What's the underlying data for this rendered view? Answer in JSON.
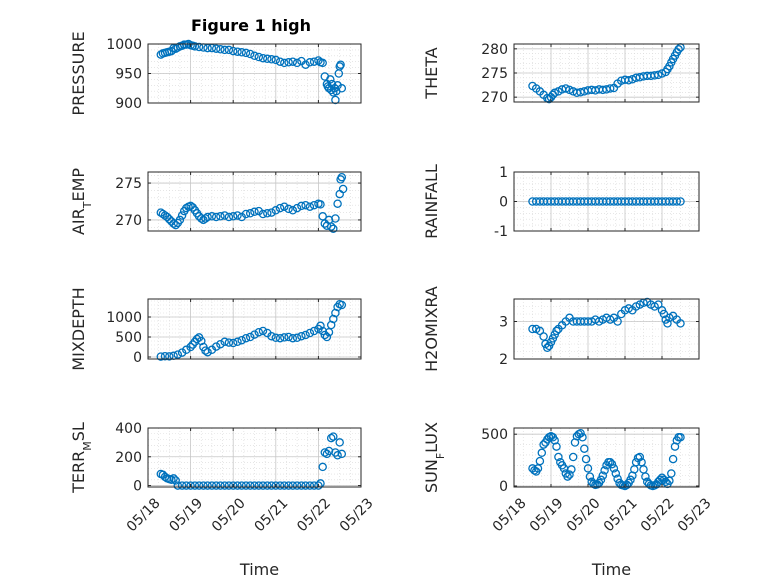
{
  "figure": {
    "title": "Figure 1 high",
    "marker_color": "#0072BD",
    "time_ticks": [
      "05/18",
      "05/19",
      "05/20",
      "05/21",
      "05/22",
      "05/23"
    ]
  },
  "chart_data": [
    {
      "type": "scatter",
      "ylabel": "PRESSURE",
      "ylabel_main": "PRESSURE",
      "ylabel_sub": "",
      "ylabel_rest": "",
      "xlabel": "",
      "xlim": [
        0,
        5
      ],
      "ylim": [
        900,
        1000
      ],
      "yticks": [
        900,
        950,
        1000
      ],
      "xticklabels_shown": false,
      "grid": true,
      "minor_grid": true,
      "x": [
        0.3,
        0.35,
        0.4,
        0.45,
        0.5,
        0.55,
        0.6,
        0.65,
        0.7,
        0.75,
        0.8,
        0.85,
        0.9,
        0.95,
        1.0,
        1.05,
        1.1,
        1.2,
        1.3,
        1.4,
        1.5,
        1.6,
        1.7,
        1.8,
        1.9,
        2.0,
        2.1,
        2.2,
        2.3,
        2.4,
        2.5,
        2.6,
        2.7,
        2.8,
        2.9,
        3.0,
        3.1,
        3.2,
        3.3,
        3.4,
        3.5,
        3.6,
        3.7,
        3.8,
        3.9,
        4.0,
        4.05,
        4.1,
        4.15,
        4.2,
        4.22,
        4.25,
        4.28,
        4.3,
        4.32,
        4.35,
        4.38,
        4.4,
        4.42,
        4.45,
        4.48,
        4.5,
        4.52,
        4.55
      ],
      "y": [
        982,
        984,
        985,
        986,
        987,
        988,
        993,
        992,
        994,
        996,
        997,
        999,
        999,
        1000,
        998,
        997,
        996,
        995,
        994,
        993,
        993,
        992,
        991,
        990,
        990,
        988,
        987,
        986,
        985,
        983,
        980,
        978,
        976,
        975,
        974,
        973,
        970,
        968,
        969,
        970,
        968,
        971,
        965,
        969,
        970,
        972,
        969,
        968,
        945,
        932,
        928,
        925,
        940,
        922,
        932,
        918,
        925,
        905,
        920,
        930,
        950,
        962,
        965,
        925
      ]
    },
    {
      "type": "scatter",
      "ylabel": "THETA",
      "ylabel_main": "THETA",
      "ylabel_sub": "",
      "ylabel_rest": "",
      "xlabel": "",
      "xlim": [
        0,
        5
      ],
      "ylim": [
        269,
        281
      ],
      "yticks": [
        270,
        275,
        280
      ],
      "xticklabels_shown": false,
      "grid": true,
      "minor_grid": true,
      "x": [
        0.5,
        0.6,
        0.7,
        0.8,
        0.9,
        0.95,
        1.0,
        1.05,
        1.1,
        1.2,
        1.3,
        1.4,
        1.5,
        1.6,
        1.7,
        1.8,
        1.9,
        2.0,
        2.1,
        2.2,
        2.3,
        2.4,
        2.5,
        2.6,
        2.7,
        2.8,
        2.9,
        3.0,
        3.1,
        3.2,
        3.3,
        3.4,
        3.5,
        3.6,
        3.7,
        3.8,
        3.9,
        4.0,
        4.1,
        4.15,
        4.2,
        4.25,
        4.3,
        4.35,
        4.4,
        4.45,
        4.5
      ],
      "y": [
        272.3,
        271.8,
        271.2,
        270.5,
        269.8,
        269.6,
        270.0,
        270.5,
        270.9,
        271.2,
        271.6,
        271.8,
        271.5,
        271.2,
        270.9,
        271.0,
        271.2,
        271.4,
        271.5,
        271.4,
        271.6,
        271.5,
        271.6,
        271.8,
        271.9,
        272.8,
        273.4,
        273.6,
        273.5,
        273.7,
        274.0,
        274.1,
        274.3,
        274.4,
        274.4,
        274.5,
        274.6,
        274.9,
        275.2,
        275.8,
        276.4,
        277.2,
        277.9,
        278.6,
        279.3,
        279.9,
        280.3
      ]
    },
    {
      "type": "scatter",
      "ylabel": "AIR_TEMP",
      "ylabel_main": "AIR",
      "ylabel_sub": "T",
      "ylabel_rest": "EMP",
      "xlabel": "",
      "xlim": [
        0,
        5
      ],
      "ylim": [
        268.5,
        276.5
      ],
      "yticks": [
        270,
        275
      ],
      "xticklabels_shown": false,
      "grid": true,
      "minor_grid": true,
      "x": [
        0.3,
        0.35,
        0.4,
        0.45,
        0.5,
        0.55,
        0.6,
        0.65,
        0.7,
        0.75,
        0.8,
        0.85,
        0.9,
        0.95,
        1.0,
        1.05,
        1.1,
        1.15,
        1.2,
        1.25,
        1.3,
        1.35,
        1.4,
        1.5,
        1.6,
        1.7,
        1.8,
        1.9,
        2.0,
        2.1,
        2.2,
        2.3,
        2.4,
        2.5,
        2.6,
        2.7,
        2.8,
        2.9,
        3.0,
        3.1,
        3.2,
        3.3,
        3.4,
        3.5,
        3.6,
        3.7,
        3.8,
        3.9,
        4.0,
        4.05,
        4.1,
        4.15,
        4.2,
        4.25,
        4.3,
        4.35,
        4.4,
        4.45,
        4.5,
        4.52,
        4.55,
        4.58
      ],
      "y": [
        271.0,
        270.8,
        270.6,
        270.4,
        270.1,
        269.8,
        269.5,
        269.3,
        269.6,
        270.0,
        270.6,
        271.2,
        271.6,
        271.8,
        271.9,
        271.7,
        271.3,
        270.9,
        270.5,
        270.2,
        270.0,
        270.2,
        270.4,
        270.5,
        270.4,
        270.5,
        270.6,
        270.4,
        270.5,
        270.6,
        270.4,
        270.8,
        270.9,
        271.1,
        271.2,
        270.8,
        270.9,
        271.0,
        271.3,
        271.6,
        271.8,
        271.5,
        271.3,
        271.6,
        271.9,
        272.0,
        271.8,
        272.0,
        272.2,
        272.1,
        270.5,
        269.5,
        269.2,
        270.0,
        269.1,
        268.8,
        270.2,
        272.2,
        273.5,
        275.5,
        275.8,
        274.2
      ]
    },
    {
      "type": "scatter",
      "ylabel": "RAINFALL",
      "ylabel_main": "RAINFALL",
      "ylabel_sub": "",
      "ylabel_rest": "",
      "xlabel": "",
      "xlim": [
        0,
        5
      ],
      "ylim": [
        -1,
        1
      ],
      "yticks": [
        -1,
        0,
        1
      ],
      "xticklabels_shown": false,
      "grid": true,
      "minor_grid": true,
      "x": [
        0.5,
        0.6,
        0.7,
        0.8,
        0.9,
        1.0,
        1.1,
        1.2,
        1.3,
        1.4,
        1.5,
        1.6,
        1.7,
        1.8,
        1.9,
        2.0,
        2.1,
        2.2,
        2.3,
        2.4,
        2.5,
        2.6,
        2.7,
        2.8,
        2.9,
        3.0,
        3.1,
        3.2,
        3.3,
        3.4,
        3.5,
        3.6,
        3.7,
        3.8,
        3.9,
        4.0,
        4.1,
        4.2,
        4.3,
        4.4,
        4.5
      ],
      "y": [
        0,
        0,
        0,
        0,
        0,
        0,
        0,
        0,
        0,
        0,
        0,
        0,
        0,
        0,
        0,
        0,
        0,
        0,
        0,
        0,
        0,
        0,
        0,
        0,
        0,
        0,
        0,
        0,
        0,
        0,
        0,
        0,
        0,
        0,
        0,
        0,
        0,
        0,
        0,
        0,
        0
      ]
    },
    {
      "type": "scatter",
      "ylabel": "MIXDEPTH",
      "ylabel_main": "MIXDEPTH",
      "ylabel_sub": "",
      "ylabel_rest": "",
      "xlabel": "",
      "xlim": [
        0,
        5
      ],
      "ylim": [
        -50,
        1450
      ],
      "yticks": [
        0,
        500,
        1000
      ],
      "xticklabels_shown": false,
      "grid": true,
      "minor_grid": true,
      "x": [
        0.3,
        0.4,
        0.5,
        0.6,
        0.7,
        0.8,
        0.9,
        1.0,
        1.05,
        1.1,
        1.15,
        1.2,
        1.25,
        1.3,
        1.35,
        1.4,
        1.5,
        1.6,
        1.7,
        1.8,
        1.9,
        2.0,
        2.1,
        2.2,
        2.3,
        2.4,
        2.5,
        2.6,
        2.7,
        2.8,
        2.9,
        3.0,
        3.1,
        3.2,
        3.3,
        3.4,
        3.5,
        3.6,
        3.7,
        3.8,
        3.9,
        4.0,
        4.05,
        4.1,
        4.15,
        4.2,
        4.25,
        4.3,
        4.35,
        4.4,
        4.45,
        4.5,
        4.55
      ],
      "y": [
        10,
        20,
        15,
        30,
        60,
        110,
        180,
        250,
        310,
        380,
        450,
        490,
        400,
        250,
        160,
        120,
        180,
        260,
        320,
        380,
        360,
        350,
        380,
        420,
        470,
        500,
        560,
        620,
        650,
        600,
        520,
        480,
        470,
        490,
        500,
        470,
        480,
        520,
        550,
        600,
        650,
        700,
        780,
        650,
        550,
        500,
        620,
        800,
        950,
        1100,
        1250,
        1320,
        1300
      ]
    },
    {
      "type": "scatter",
      "ylabel": "H2OMIXRA",
      "ylabel_main": "H2OMIXRA",
      "ylabel_sub": "",
      "ylabel_rest": "",
      "xlabel": "",
      "xlim": [
        0,
        5
      ],
      "ylim": [
        2,
        3.6
      ],
      "yticks": [
        2,
        3
      ],
      "xticklabels_shown": false,
      "grid": true,
      "minor_grid": true,
      "x": [
        0.5,
        0.6,
        0.7,
        0.8,
        0.85,
        0.9,
        0.95,
        1.0,
        1.05,
        1.1,
        1.15,
        1.2,
        1.3,
        1.4,
        1.5,
        1.6,
        1.7,
        1.8,
        1.9,
        2.0,
        2.1,
        2.2,
        2.3,
        2.4,
        2.5,
        2.6,
        2.7,
        2.8,
        2.9,
        3.0,
        3.1,
        3.2,
        3.3,
        3.4,
        3.5,
        3.6,
        3.7,
        3.8,
        3.9,
        4.0,
        4.05,
        4.1,
        4.15,
        4.2,
        4.3,
        4.4,
        4.5
      ],
      "y": [
        2.8,
        2.8,
        2.75,
        2.6,
        2.4,
        2.3,
        2.35,
        2.45,
        2.55,
        2.65,
        2.75,
        2.8,
        2.9,
        3.0,
        3.1,
        3.0,
        3.0,
        3.0,
        3.0,
        3.0,
        3.0,
        3.05,
        3.0,
        3.05,
        3.1,
        3.05,
        3.1,
        3.0,
        3.2,
        3.3,
        3.35,
        3.3,
        3.4,
        3.45,
        3.5,
        3.52,
        3.45,
        3.4,
        3.45,
        3.3,
        3.2,
        3.05,
        2.95,
        3.1,
        3.15,
        3.05,
        2.95
      ]
    },
    {
      "type": "scatter",
      "ylabel": "TERR_MSL",
      "ylabel_main": "TERR",
      "ylabel_sub": "M",
      "ylabel_rest": "SL",
      "xlabel": "Time",
      "xlim": [
        0,
        5
      ],
      "ylim": [
        -10,
        400
      ],
      "yticks": [
        0,
        200,
        400
      ],
      "xticklabels_shown": true,
      "grid": true,
      "minor_grid": true,
      "x": [
        0.3,
        0.35,
        0.4,
        0.45,
        0.5,
        0.55,
        0.6,
        0.65,
        0.7,
        0.8,
        0.9,
        1.0,
        1.1,
        1.2,
        1.3,
        1.4,
        1.5,
        1.6,
        1.7,
        1.8,
        1.9,
        2.0,
        2.1,
        2.2,
        2.3,
        2.4,
        2.5,
        2.6,
        2.7,
        2.8,
        2.9,
        3.0,
        3.1,
        3.2,
        3.3,
        3.4,
        3.5,
        3.6,
        3.7,
        3.8,
        3.9,
        4.0,
        4.05,
        4.1,
        4.15,
        4.2,
        4.25,
        4.3,
        4.35,
        4.4,
        4.45,
        4.5,
        4.55
      ],
      "y": [
        80,
        75,
        60,
        50,
        45,
        40,
        50,
        35,
        0,
        0,
        0,
        0,
        0,
        0,
        0,
        0,
        0,
        0,
        0,
        0,
        0,
        0,
        0,
        0,
        0,
        0,
        0,
        0,
        0,
        0,
        0,
        0,
        0,
        0,
        0,
        0,
        0,
        0,
        0,
        0,
        0,
        0,
        15,
        130,
        230,
        220,
        240,
        330,
        340,
        230,
        210,
        300,
        220
      ]
    },
    {
      "type": "scatter",
      "ylabel": "SUN_FLUX",
      "ylabel_main": "SUN",
      "ylabel_sub": "F",
      "ylabel_rest": "LUX",
      "xlabel": "Time",
      "xlim": [
        0,
        5
      ],
      "ylim": [
        -10,
        560
      ],
      "yticks": [
        0,
        500
      ],
      "xticklabels_shown": true,
      "grid": true,
      "minor_grid": true,
      "x": [
        0.5,
        0.55,
        0.6,
        0.65,
        0.7,
        0.75,
        0.8,
        0.85,
        0.9,
        0.95,
        1.0,
        1.05,
        1.1,
        1.15,
        1.2,
        1.25,
        1.3,
        1.35,
        1.4,
        1.45,
        1.5,
        1.55,
        1.6,
        1.65,
        1.7,
        1.75,
        1.8,
        1.85,
        1.9,
        1.95,
        2.0,
        2.05,
        2.1,
        2.15,
        2.2,
        2.25,
        2.3,
        2.35,
        2.4,
        2.45,
        2.5,
        2.55,
        2.6,
        2.65,
        2.7,
        2.75,
        2.8,
        2.85,
        2.9,
        2.95,
        3.0,
        3.05,
        3.1,
        3.15,
        3.2,
        3.25,
        3.3,
        3.35,
        3.4,
        3.45,
        3.5,
        3.55,
        3.6,
        3.65,
        3.7,
        3.75,
        3.8,
        3.85,
        3.9,
        3.95,
        4.0,
        4.05,
        4.1,
        4.15,
        4.2,
        4.25,
        4.3,
        4.35,
        4.4,
        4.45,
        4.5
      ],
      "y": [
        170,
        150,
        140,
        170,
        240,
        320,
        400,
        420,
        450,
        470,
        480,
        470,
        440,
        380,
        280,
        230,
        200,
        170,
        120,
        90,
        110,
        160,
        280,
        420,
        480,
        500,
        510,
        470,
        360,
        260,
        170,
        90,
        40,
        20,
        10,
        15,
        30,
        60,
        100,
        150,
        200,
        230,
        230,
        210,
        170,
        120,
        70,
        30,
        10,
        5,
        0,
        10,
        30,
        60,
        100,
        160,
        230,
        270,
        280,
        230,
        160,
        90,
        40,
        20,
        5,
        0,
        5,
        15,
        40,
        60,
        80,
        60,
        40,
        20,
        50,
        120,
        260,
        380,
        440,
        470,
        470
      ]
    }
  ]
}
